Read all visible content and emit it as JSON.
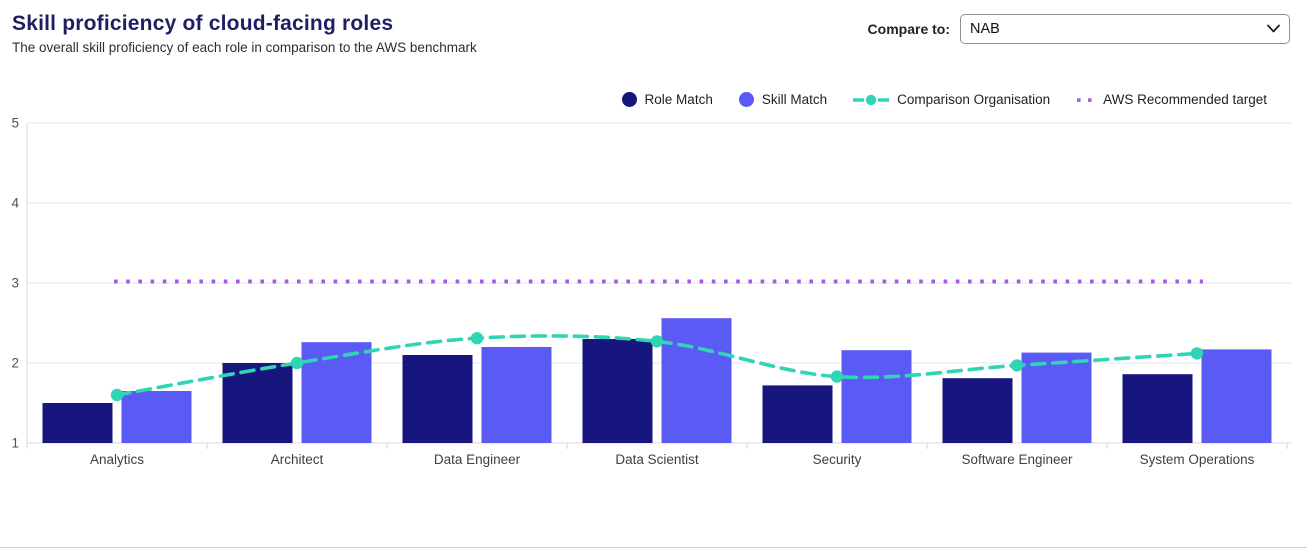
{
  "header": {
    "title": "Skill proficiency of cloud-facing roles",
    "subtitle": "The overall skill proficiency of each role in comparison to the AWS benchmark"
  },
  "controls": {
    "compare_label": "Compare to:",
    "compare_value": "NAB"
  },
  "colors": {
    "role_match": "#16167e",
    "skill_match": "#5a5af5",
    "comparison_org": "#30d5b4",
    "aws_target": "#a55ce0",
    "gridline": "#e7e7e7",
    "axis": "#d9d9d9",
    "tick_label": "#4d5156",
    "category_label": "#3c4043"
  },
  "legend": [
    {
      "label": "Role Match",
      "marker": "circle",
      "color": "#16167e"
    },
    {
      "label": "Skill Match",
      "marker": "circle",
      "color": "#5a5af5"
    },
    {
      "label": "Comparison Organisation",
      "marker": "dash-dot",
      "color": "#30d5b4"
    },
    {
      "label": "AWS Recommended target",
      "marker": "dotted",
      "color": "#a55ce0"
    }
  ],
  "chart_data": {
    "type": "bar",
    "title": "Skill proficiency of cloud-facing roles",
    "categories": [
      "Analytics",
      "Architect",
      "Data Engineer",
      "Data Scientist",
      "Security",
      "Software Engineer",
      "System Operations"
    ],
    "series": [
      {
        "name": "Role Match",
        "type": "bar",
        "color": "#16167e",
        "values": [
          1.5,
          2.0,
          2.1,
          2.3,
          1.72,
          1.81,
          1.86
        ]
      },
      {
        "name": "Skill Match",
        "type": "bar",
        "color": "#5a5af5",
        "values": [
          1.65,
          2.26,
          2.2,
          2.56,
          2.16,
          2.13,
          2.17
        ]
      },
      {
        "name": "Comparison Organisation",
        "type": "line",
        "line_style": "dashed",
        "color": "#30d5b4",
        "values": [
          1.6,
          2.0,
          2.31,
          2.27,
          1.83,
          1.97,
          2.12
        ]
      },
      {
        "name": "AWS Recommended target",
        "type": "line",
        "line_style": "dotted",
        "color": "#a55ce0",
        "values": [
          3,
          3,
          3,
          3,
          3,
          3,
          3
        ]
      }
    ],
    "xlabel": "",
    "ylabel": "",
    "ylim": [
      1,
      5
    ],
    "yticks": [
      1,
      2,
      3,
      4,
      5
    ],
    "grid": true,
    "legend_position": "top-right"
  }
}
